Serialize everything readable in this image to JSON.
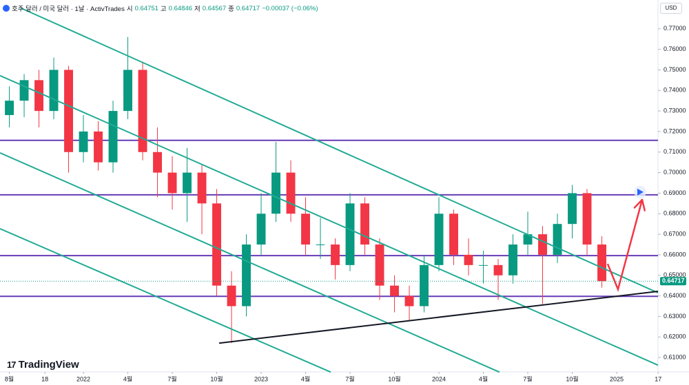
{
  "header": {
    "symbol": "호주 달러 / 미국 달러 · 1날 · ActivTrades",
    "fields": [
      {
        "label": "시",
        "value": 0.64751
      },
      {
        "label": "고",
        "value": 0.64846
      },
      {
        "label": "저",
        "value": 0.64567
      },
      {
        "label": "종",
        "value": 0.64717
      }
    ],
    "change": "−0.00037 (−0.06%)",
    "currency": "USD",
    "brand": "TradingView"
  },
  "chart_data": {
    "type": "candlestick",
    "x": [
      0,
      1,
      2,
      3,
      4,
      5,
      6,
      7,
      8,
      9,
      10,
      11,
      12,
      13,
      14,
      15,
      16,
      17,
      18,
      19,
      20,
      21,
      22,
      23,
      24,
      25,
      26,
      27,
      28,
      29,
      30,
      31,
      32,
      33,
      34,
      35,
      36,
      37,
      38,
      39,
      40
    ],
    "open": [
      0.728,
      0.735,
      0.745,
      0.73,
      0.75,
      0.71,
      0.72,
      0.705,
      0.73,
      0.75,
      0.71,
      0.7,
      0.69,
      0.7,
      0.685,
      0.645,
      0.635,
      0.665,
      0.68,
      0.7,
      0.68,
      0.665,
      0.665,
      0.655,
      0.685,
      0.665,
      0.645,
      0.64,
      0.635,
      0.655,
      0.68,
      0.66,
      0.655,
      0.655,
      0.65,
      0.665,
      0.67,
      0.66,
      0.675,
      0.69,
      0.665
    ],
    "high": [
      0.742,
      0.748,
      0.75,
      0.756,
      0.752,
      0.728,
      0.725,
      0.735,
      0.766,
      0.754,
      0.722,
      0.708,
      0.712,
      0.704,
      0.692,
      0.652,
      0.67,
      0.69,
      0.715,
      0.706,
      0.688,
      0.678,
      0.668,
      0.69,
      0.688,
      0.668,
      0.65,
      0.645,
      0.66,
      0.688,
      0.682,
      0.668,
      0.662,
      0.658,
      0.67,
      0.681,
      0.674,
      0.68,
      0.694,
      0.692,
      0.669
    ],
    "low": [
      0.722,
      0.727,
      0.722,
      0.726,
      0.7,
      0.705,
      0.701,
      0.7,
      0.726,
      0.706,
      0.688,
      0.682,
      0.676,
      0.67,
      0.64,
      0.617,
      0.63,
      0.66,
      0.676,
      0.676,
      0.66,
      0.658,
      0.648,
      0.652,
      0.66,
      0.638,
      0.632,
      0.628,
      0.632,
      0.652,
      0.655,
      0.65,
      0.646,
      0.638,
      0.646,
      0.66,
      0.636,
      0.656,
      0.668,
      0.66,
      0.644
    ],
    "close": [
      0.735,
      0.745,
      0.73,
      0.75,
      0.71,
      0.72,
      0.705,
      0.73,
      0.75,
      0.71,
      0.7,
      0.69,
      0.7,
      0.685,
      0.645,
      0.635,
      0.665,
      0.68,
      0.7,
      0.68,
      0.665,
      0.665,
      0.655,
      0.685,
      0.665,
      0.645,
      0.64,
      0.635,
      0.655,
      0.68,
      0.66,
      0.655,
      0.655,
      0.65,
      0.665,
      0.67,
      0.66,
      0.675,
      0.69,
      0.665,
      0.64717
    ],
    "up_color": "#089981",
    "down_color": "#f23645",
    "xlim": [
      -0.63,
      43.79
    ],
    "ylim": [
      0.603,
      0.784
    ],
    "xticks": [
      {
        "value": 0,
        "label": "8월"
      },
      {
        "value": 2.4,
        "label": "18"
      },
      {
        "value": 5,
        "label": "2022"
      },
      {
        "value": 8,
        "label": "4월"
      },
      {
        "value": 11,
        "label": "7월"
      },
      {
        "value": 14,
        "label": "10월"
      },
      {
        "value": 17,
        "label": "2023"
      },
      {
        "value": 20,
        "label": "4월"
      },
      {
        "value": 23,
        "label": "7월"
      },
      {
        "value": 26,
        "label": "10월"
      },
      {
        "value": 29,
        "label": "2024"
      },
      {
        "value": 32,
        "label": "4월"
      },
      {
        "value": 35,
        "label": "7월"
      },
      {
        "value": 38,
        "label": "10월"
      },
      {
        "value": 41,
        "label": "2025"
      },
      {
        "value": 43.8,
        "label": "17"
      }
    ],
    "yticks": [
      {
        "value": 0.61,
        "label": "0.61000"
      },
      {
        "value": 0.62,
        "label": "0.62000"
      },
      {
        "value": 0.63,
        "label": "0.63000"
      },
      {
        "value": 0.64,
        "label": "0.64000"
      },
      {
        "value": 0.65,
        "label": "0.65000"
      },
      {
        "value": 0.66,
        "label": "0.66000"
      },
      {
        "value": 0.67,
        "label": "0.67000"
      },
      {
        "value": 0.68,
        "label": "0.68000"
      },
      {
        "value": 0.69,
        "label": "0.69000"
      },
      {
        "value": 0.7,
        "label": "0.70000"
      },
      {
        "value": 0.71,
        "label": "0.71000"
      },
      {
        "value": 0.72,
        "label": "0.72000"
      },
      {
        "value": 0.73,
        "label": "0.73000"
      },
      {
        "value": 0.74,
        "label": "0.74000"
      },
      {
        "value": 0.75,
        "label": "0.75000"
      },
      {
        "value": 0.76,
        "label": "0.76000"
      },
      {
        "value": 0.77,
        "label": "0.77000"
      }
    ],
    "horizontal_lines": {
      "color": "#673ab7",
      "values": [
        0.7157,
        0.6892,
        0.6596,
        0.6398
      ]
    },
    "trend_lines": [
      {
        "color": "#22ab94",
        "x": [
          0.77,
          43.79
        ],
        "values": [
          0.7801,
          0.6415
        ]
      },
      {
        "color": "#22ab94",
        "x": [
          -0.63,
          43.79
        ],
        "values": [
          0.7472,
          0.6063
        ]
      },
      {
        "color": "#22ab94",
        "x": [
          -0.63,
          33.09
        ],
        "values": [
          0.7096,
          0.6029
        ]
      },
      {
        "color": "#22ab94",
        "x": [
          -0.63,
          21.7
        ],
        "values": [
          0.6727,
          0.6029
        ]
      },
      {
        "color": "#131722",
        "x": [
          14.16,
          43.79
        ],
        "values": [
          0.617,
          0.6422
        ]
      }
    ],
    "arrow": {
      "color": "#f23645",
      "x": [
        40.39,
        41.09,
        42.72
      ],
      "values": [
        0.6556,
        0.6432,
        0.6868
      ]
    }
  }
}
